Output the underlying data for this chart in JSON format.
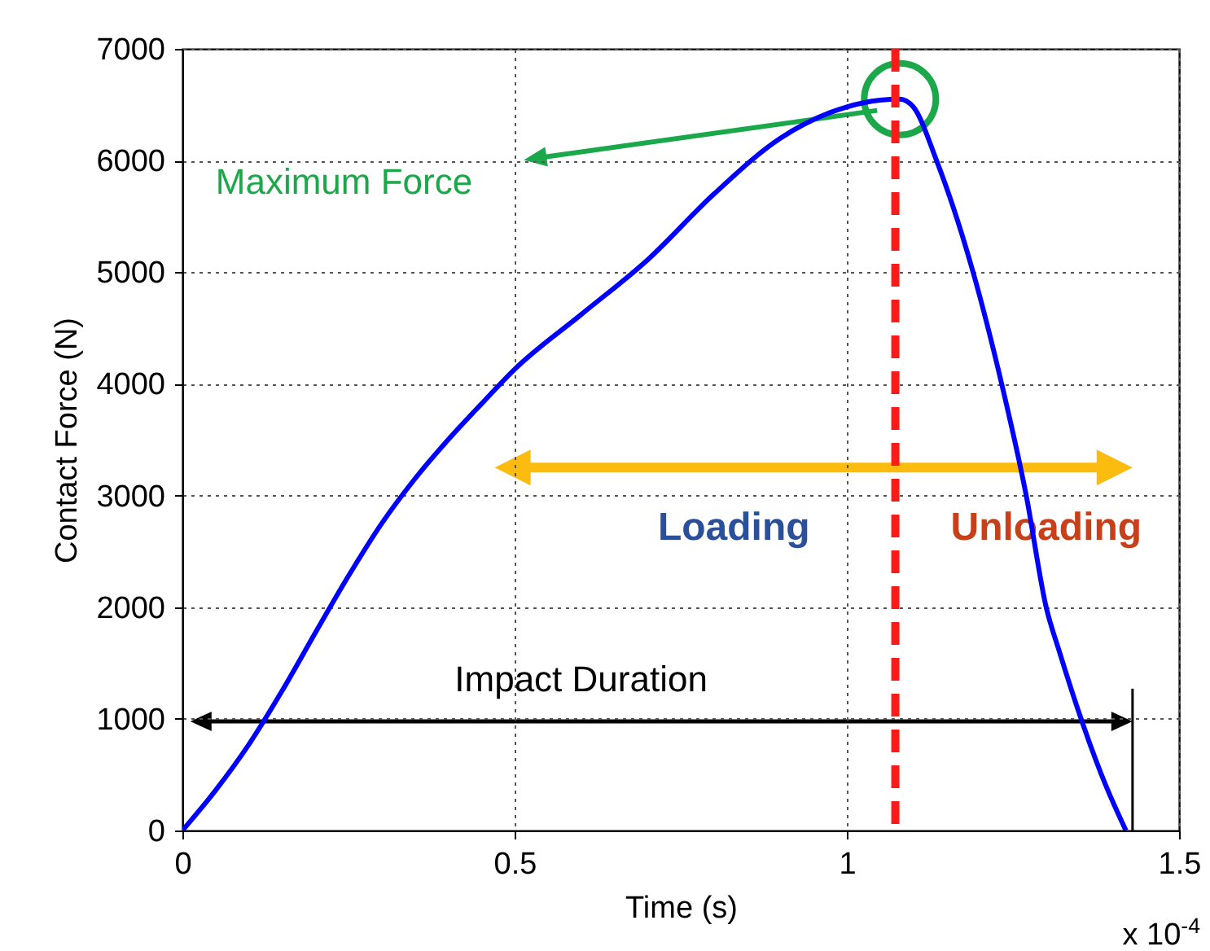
{
  "chart_data": {
    "type": "line",
    "xlabel": "Time (s)",
    "ylabel": "Contact  Force (N)",
    "xlim": [
      0,
      1.5
    ],
    "xticks": [
      0,
      0.5,
      1,
      1.5
    ],
    "ylim": [
      0,
      7000
    ],
    "yticks": [
      0,
      1000,
      2000,
      3000,
      4000,
      5000,
      6000,
      7000
    ],
    "grid": true,
    "series": [
      {
        "color": "#0000ff",
        "x": [
          0,
          0.05,
          0.1,
          0.15,
          0.2,
          0.25,
          0.3,
          0.35,
          0.4,
          0.45,
          0.5,
          0.6,
          0.7,
          0.8,
          0.9,
          1.0,
          1.05,
          1.08,
          1.1,
          1.135,
          1.19,
          1.233,
          1.27,
          1.3,
          1.32,
          1.39,
          1.42
        ],
        "values": [
          0,
          360,
          770,
          1250,
          1770,
          2280,
          2750,
          3150,
          3500,
          3820,
          4130,
          4620,
          5110,
          5700,
          6200,
          6480,
          6540,
          6550,
          6480,
          6000,
          5000,
          4000,
          3000,
          2000,
          1600,
          400,
          0
        ]
      }
    ],
    "ref_lines": [
      {
        "axis": "x",
        "value": 1.073,
        "color": "#ff1a1a",
        "line_style": "dashed"
      }
    ],
    "annotations": [
      "Maximum Force",
      "Loading",
      "Unloading",
      "Impact Duration",
      "x 10$^{-4}$"
    ]
  }
}
